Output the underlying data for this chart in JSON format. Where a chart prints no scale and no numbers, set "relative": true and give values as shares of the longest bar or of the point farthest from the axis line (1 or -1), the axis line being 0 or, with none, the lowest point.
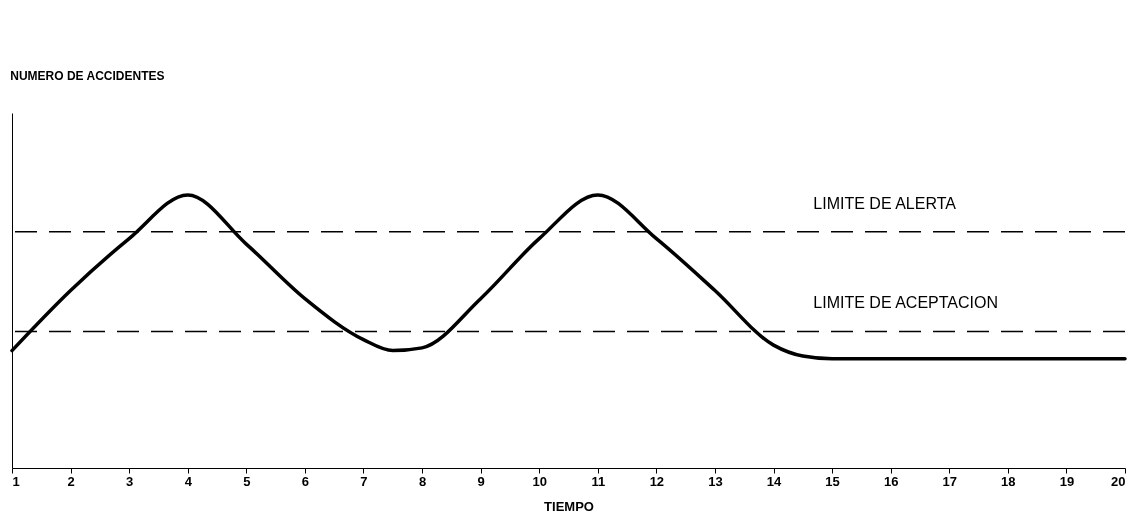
{
  "chart_data": {
    "type": "line",
    "relative": true,
    "xlabel": "TIEMPO",
    "annotations": [
      "NUMERO DE ACCIDENTES"
    ],
    "x": [
      1,
      2,
      3,
      4,
      5,
      6,
      7,
      7.5,
      8,
      9,
      10,
      11,
      12,
      13,
      14,
      14.5,
      15,
      20
    ],
    "xlim": [
      1,
      20
    ],
    "xticks": [
      1,
      2,
      3,
      4,
      5,
      6,
      7,
      8,
      9,
      10,
      11,
      12,
      13,
      14,
      15,
      16,
      17,
      18,
      19,
      20
    ],
    "series": [
      {
        "color": "#000000",
        "values": [
          0.43,
          0.65,
          0.84,
          1,
          0.82,
          0.62,
          0.47,
          0.43,
          0.44,
          0.62,
          0.84,
          1,
          0.84,
          0.65,
          0.45,
          0.41,
          0.4,
          0.4
        ]
      }
    ],
    "ref_lines": [
      {
        "axis": "y",
        "value": 0.865,
        "label": "LIMITE DE ALERTA",
        "color": "#000000",
        "line_style": "dashed"
      },
      {
        "axis": "y",
        "value": 0.5,
        "label": "LIMITE DE ACEPTACION",
        "color": "#000000",
        "line_style": "dashed"
      }
    ],
    "grid": false,
    "marker": "none",
    "line_style": "solid"
  }
}
